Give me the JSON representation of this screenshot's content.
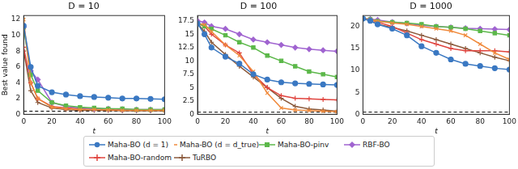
{
  "chart_data": [
    {
      "type": "line",
      "title": "D = 10",
      "x_label": "t",
      "y_label": "Best value found",
      "grid": false,
      "legend": "bottom",
      "xlim": [
        0,
        100
      ],
      "xticks": [
        0,
        20,
        40,
        60,
        80,
        100
      ],
      "ylim": [
        0,
        12.5
      ],
      "yticks": [
        0,
        2,
        4,
        6,
        8,
        10,
        12
      ],
      "x": [
        0,
        5,
        10,
        20,
        30,
        40,
        50,
        60,
        70,
        80,
        90,
        100
      ],
      "hline": {
        "value": 0.4,
        "color": "#000000",
        "line_style": "dashed"
      },
      "series": [
        {
          "name": "Maha-BO (d = 1)",
          "color": "#3a78c2",
          "marker": "circle",
          "values": [
            11.2,
            6,
            3.6,
            2.8,
            2.5,
            2.3,
            2.2,
            2.1,
            2.0,
            2.0,
            1.95,
            1.9
          ]
        },
        {
          "name": "Maha-BO (d = d_true)",
          "color": "#f08a3c",
          "marker": "x",
          "values": [
            12,
            4,
            2,
            0.9,
            0.7,
            0.6,
            0.6,
            0.55,
            0.5,
            0.5,
            0.5,
            0.5
          ]
        },
        {
          "name": "Maha-BO-pinv",
          "color": "#5cb84a",
          "marker": "square",
          "values": [
            11,
            5,
            3,
            1.5,
            1.1,
            0.9,
            0.8,
            0.7,
            0.7,
            0.6,
            0.6,
            0.6
          ]
        },
        {
          "name": "RBF-BO",
          "color": "#a064d0",
          "marker": "diamond",
          "values": [
            11,
            5.5,
            4.4,
            1.5,
            1.0,
            0.8,
            0.7,
            0.7,
            0.65,
            0.6,
            0.6,
            0.6
          ]
        },
        {
          "name": "Maha-BO-random",
          "color": "#e0443e",
          "marker": "plus",
          "values": [
            8.5,
            4,
            2,
            1,
            0.8,
            0.7,
            0.65,
            0.6,
            0.6,
            0.55,
            0.55,
            0.5
          ]
        },
        {
          "name": "TuRBO",
          "color": "#8b5a3c",
          "marker": "plus",
          "values": [
            8,
            3,
            1.5,
            0.8,
            0.6,
            0.5,
            0.5,
            0.5,
            0.45,
            0.45,
            0.45,
            0.45
          ]
        }
      ]
    },
    {
      "type": "line",
      "title": "D = 100",
      "x_label": "t",
      "grid": false,
      "xlim": [
        0,
        100
      ],
      "xticks": [
        0,
        20,
        40,
        60,
        80,
        100
      ],
      "ylim": [
        0,
        18.5
      ],
      "yticks": [
        0,
        2.5,
        5,
        7.5,
        10,
        12.5,
        15,
        17.5
      ],
      "x": [
        0,
        5,
        10,
        20,
        30,
        40,
        50,
        60,
        70,
        80,
        90,
        100
      ],
      "hline": {
        "value": 0.4,
        "color": "#000000",
        "line_style": "dashed"
      },
      "series": [
        {
          "name": "Maha-BO (d = 1)",
          "color": "#3a78c2",
          "marker": "circle",
          "values": [
            17,
            15,
            12.5,
            10.8,
            9.5,
            7.5,
            6.5,
            6,
            5.8,
            5.7,
            5.6,
            5.5
          ]
        },
        {
          "name": "Maha-BO (d = d_true)",
          "color": "#f08a3c",
          "marker": "x",
          "values": [
            17,
            16.8,
            15.5,
            13,
            11,
            8,
            4,
            1.2,
            0.8,
            0.7,
            0.6,
            0.5
          ]
        },
        {
          "name": "Maha-BO-pinv",
          "color": "#5cb84a",
          "marker": "square",
          "values": [
            17,
            16.5,
            16,
            14.8,
            13.5,
            12.5,
            11,
            10,
            9,
            8,
            7.5,
            7
          ]
        },
        {
          "name": "RBF-BO",
          "color": "#a064d0",
          "marker": "diamond",
          "values": [
            17.5,
            17.2,
            16.5,
            16,
            15,
            14,
            13.5,
            13,
            12.5,
            12.2,
            12,
            11.8
          ]
        },
        {
          "name": "Maha-BO-random",
          "color": "#e0443e",
          "marker": "plus",
          "values": [
            17,
            16.5,
            15,
            13,
            11.5,
            7.5,
            5,
            3.5,
            3,
            2.9,
            2.8,
            2.7
          ]
        },
        {
          "name": "TuRBO",
          "color": "#8b5a3c",
          "marker": "plus",
          "values": [
            17,
            15.5,
            13.5,
            11.2,
            9,
            7,
            5,
            3,
            1.5,
            1,
            0.8,
            0.6
          ]
        }
      ]
    },
    {
      "type": "line",
      "title": "D = 1000",
      "x_label": "t",
      "grid": false,
      "xlim": [
        0,
        100
      ],
      "xticks": [
        0,
        20,
        40,
        60,
        80,
        100
      ],
      "ylim": [
        0,
        22.5
      ],
      "yticks": [
        0,
        5,
        10,
        15,
        20
      ],
      "x": [
        0,
        5,
        10,
        20,
        30,
        40,
        50,
        60,
        70,
        80,
        90,
        100
      ],
      "hline": {
        "value": 0.5,
        "color": "#000000",
        "line_style": "dashed"
      },
      "series": [
        {
          "name": "Maha-BO (d = 1)",
          "color": "#3a78c2",
          "marker": "circle",
          "values": [
            21.8,
            21.3,
            20.5,
            19.5,
            18,
            15.5,
            14,
            12.5,
            11.5,
            11,
            10.5,
            10.2
          ]
        },
        {
          "name": "Maha-BO (d = d_true)",
          "color": "#f08a3c",
          "marker": "x",
          "values": [
            21.8,
            21.6,
            21.2,
            20.8,
            20.5,
            20,
            19.5,
            19,
            18,
            16,
            14,
            12.5
          ]
        },
        {
          "name": "Maha-BO-pinv",
          "color": "#5cb84a",
          "marker": "square",
          "values": [
            21.8,
            21.6,
            21.2,
            21,
            20.8,
            20.5,
            20,
            19.8,
            19.5,
            19,
            18.5,
            18
          ]
        },
        {
          "name": "RBF-BO",
          "color": "#a064d0",
          "marker": "diamond",
          "values": [
            21.8,
            21.7,
            21.5,
            21,
            20.7,
            20.3,
            20,
            19.8,
            19.6,
            19.5,
            19.4,
            19.3
          ]
        },
        {
          "name": "Maha-BO-random",
          "color": "#e0443e",
          "marker": "plus",
          "values": [
            21.8,
            21.5,
            21,
            20,
            18.5,
            17,
            16,
            15,
            14.5,
            14.5,
            14.5,
            14.2
          ]
        },
        {
          "name": "TuRBO",
          "color": "#8b5a3c",
          "marker": "plus",
          "values": [
            21.8,
            21.3,
            20.5,
            19.8,
            19,
            18,
            17,
            16,
            15,
            14,
            13,
            12.2
          ]
        }
      ]
    }
  ]
}
